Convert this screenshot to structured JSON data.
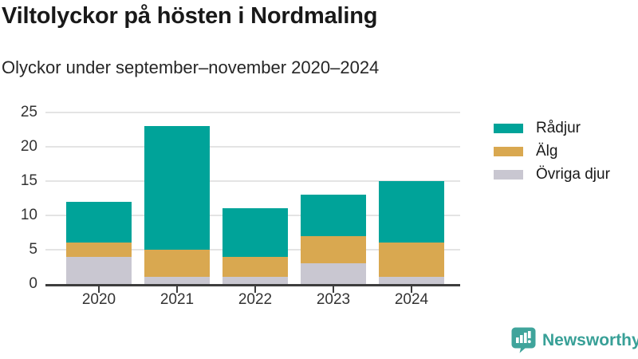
{
  "title": "Viltolyckor på hösten i Nordmaling",
  "subtitle": "Olyckor under september–november 2020–2024",
  "chart_data": {
    "type": "bar",
    "stacked": true,
    "title": "Viltolyckor på hösten i Nordmaling",
    "subtitle": "Olyckor under september–november 2020–2024",
    "categories": [
      "2020",
      "2021",
      "2022",
      "2023",
      "2024"
    ],
    "series": [
      {
        "name": "Rådjur",
        "color": "#00a399",
        "values": [
          6,
          18,
          7,
          6,
          9
        ]
      },
      {
        "name": "Älg",
        "color": "#d9a850",
        "values": [
          2,
          4,
          3,
          4,
          5
        ]
      },
      {
        "name": "Övriga djur",
        "color": "#c9c7d1",
        "values": [
          4,
          1,
          1,
          3,
          1
        ]
      }
    ],
    "totals": [
      12,
      23,
      11,
      13,
      15
    ],
    "xlabel": "",
    "ylabel": "",
    "ylim": [
      0,
      25
    ],
    "yticks": [
      0,
      5,
      10,
      15,
      20,
      25
    ],
    "grid": "horizontal",
    "legend_position": "right"
  },
  "logo": {
    "text": "Newsworthy",
    "color": "#38a097"
  }
}
